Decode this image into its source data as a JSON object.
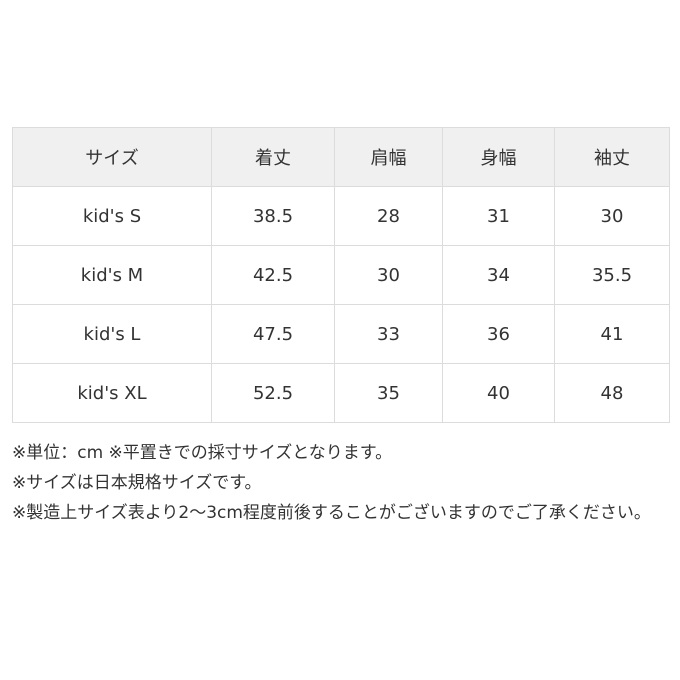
{
  "table": {
    "headers": [
      "サイズ",
      "着丈",
      "肩幅",
      "身幅",
      "袖丈"
    ],
    "rows": [
      [
        "kid's S",
        "38.5",
        "28",
        "31",
        "30"
      ],
      [
        "kid's M",
        "42.5",
        "30",
        "34",
        "35.5"
      ],
      [
        "kid's L",
        "47.5",
        "33",
        "36",
        "41"
      ],
      [
        "kid's XL",
        "52.5",
        "35",
        "40",
        "48"
      ]
    ]
  },
  "notes": [
    "※単位：cm ※平置きでの採寸サイズとなります。",
    "※サイズは日本規格サイズです。",
    "※製造上サイズ表より2～3cm程度前後することがございますのでご了承ください。"
  ],
  "colors": {
    "header_bg": "#f0f0f0",
    "border": "#dcdcdc",
    "text": "#333333"
  }
}
